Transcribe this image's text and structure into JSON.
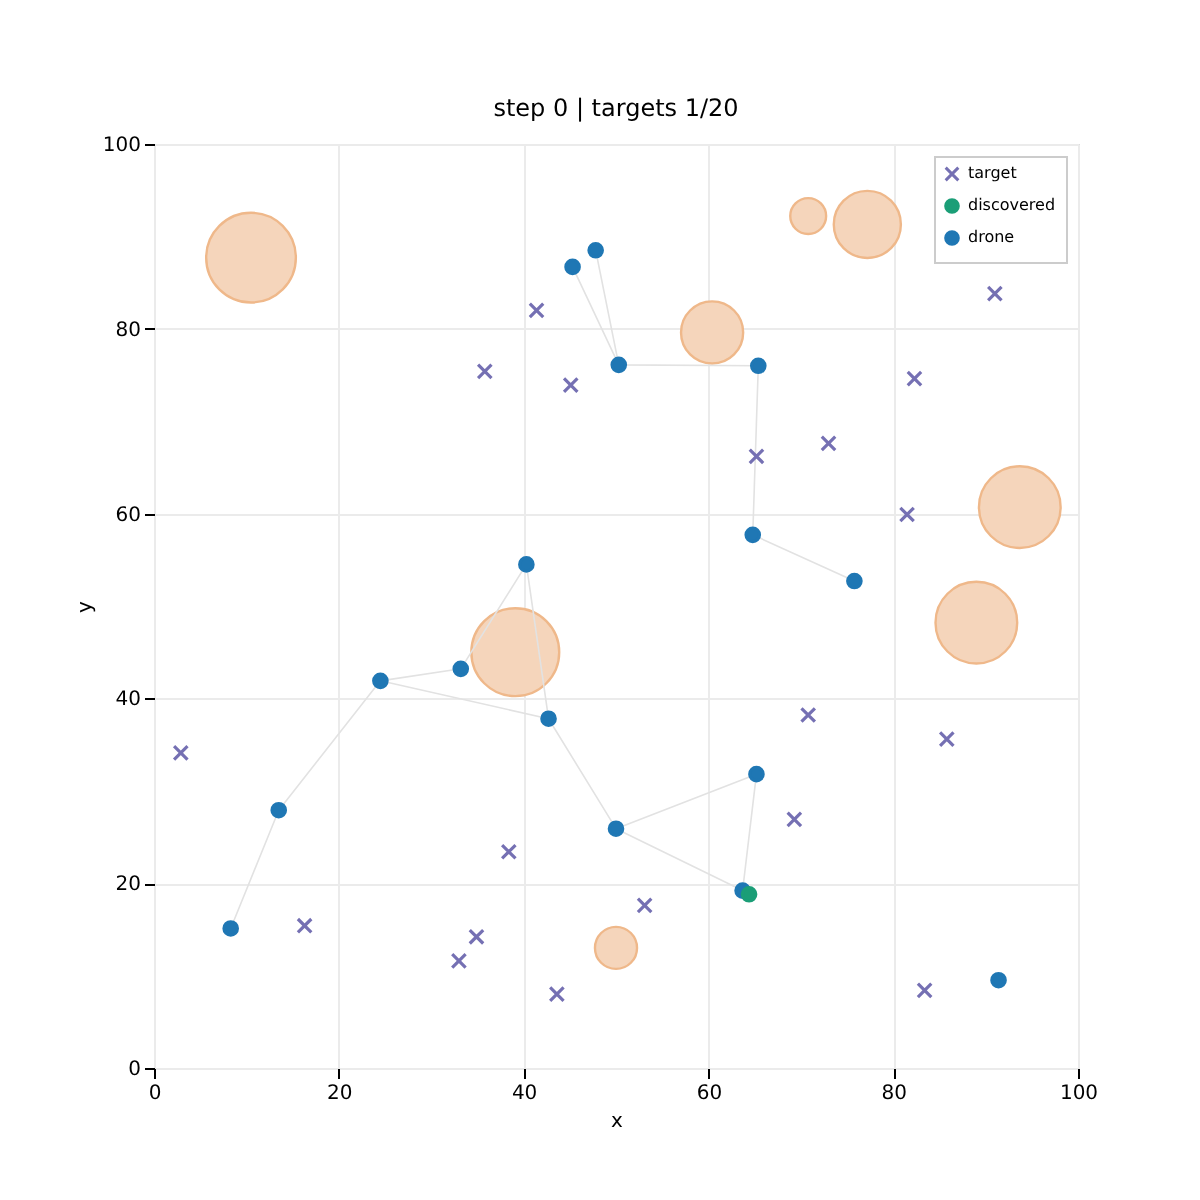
{
  "chart_data": {
    "type": "scatter",
    "title": "step 0 | targets 1/20",
    "xlabel": "x",
    "ylabel": "y",
    "xlim": [
      0,
      100
    ],
    "ylim": [
      0,
      100
    ],
    "xticks": [
      0,
      20,
      40,
      60,
      80,
      100
    ],
    "yticks": [
      0,
      20,
      40,
      60,
      80,
      100
    ],
    "grid": true,
    "legend": "top right",
    "series": [
      {
        "type": "bubble",
        "color": "#f5d5bb",
        "x": [
          10.5,
          70.8,
          77.2,
          60.4,
          93.7,
          39.1,
          89.0,
          50.0
        ],
        "values": [
          87.7,
          92.2,
          91.3,
          79.6,
          60.7,
          45.0,
          48.2,
          13.0
        ],
        "sizes": [
          1,
          0.16,
          0.56,
          0.48,
          0.83,
          0.96,
          0.83,
          0.22
        ]
      },
      {
        "type": "line",
        "color": "#e2e2e2",
        "x": [
          45.3,
          50.3,
          47.8,
          null,
          50.3,
          65.4,
          64.8,
          75.8,
          null,
          8.3,
          13.5,
          24.5,
          33.2,
          40.3,
          42.7,
          24.5,
          null,
          42.7,
          50.0,
          65.2,
          63.7,
          50.0
        ],
        "values": [
          86.7,
          76.1,
          88.5,
          null,
          76.1,
          76.0,
          57.7,
          52.7,
          null,
          15.1,
          27.9,
          41.9,
          43.2,
          54.5,
          37.8,
          41.9,
          null,
          37.8,
          25.9,
          31.8,
          19.2,
          25.9
        ]
      },
      {
        "name": "target",
        "color": "#7570b3",
        "marker": "cross",
        "x": [
          41.4,
          35.8,
          45.1,
          91.0,
          82.3,
          73.0,
          65.2,
          81.5,
          2.9,
          38.4,
          16.3,
          34.9,
          33.0,
          43.6,
          70.8,
          85.8,
          69.3,
          53.1,
          83.4
        ],
        "values": [
          82.0,
          75.4,
          73.9,
          83.8,
          74.6,
          67.6,
          66.2,
          59.9,
          34.1,
          23.4,
          15.4,
          14.2,
          11.6,
          8.0,
          38.2,
          35.6,
          26.9,
          17.6,
          8.4
        ]
      },
      {
        "name": "discovered",
        "color": "#1b9e77",
        "marker": "circle",
        "x": [
          64.4
        ],
        "values": [
          18.8
        ]
      },
      {
        "name": "drone",
        "color": "#1f77b4",
        "marker": "circle",
        "x": [
          47.8,
          45.3,
          50.3,
          40.3,
          65.4,
          64.8,
          75.8,
          24.5,
          33.2,
          42.7,
          13.5,
          8.3,
          50.0,
          65.2,
          63.7,
          91.4
        ],
        "values": [
          88.5,
          86.7,
          76.1,
          54.5,
          76.0,
          57.7,
          52.7,
          41.9,
          43.2,
          37.8,
          27.9,
          15.1,
          25.9,
          31.8,
          19.2,
          9.5
        ]
      }
    ]
  }
}
